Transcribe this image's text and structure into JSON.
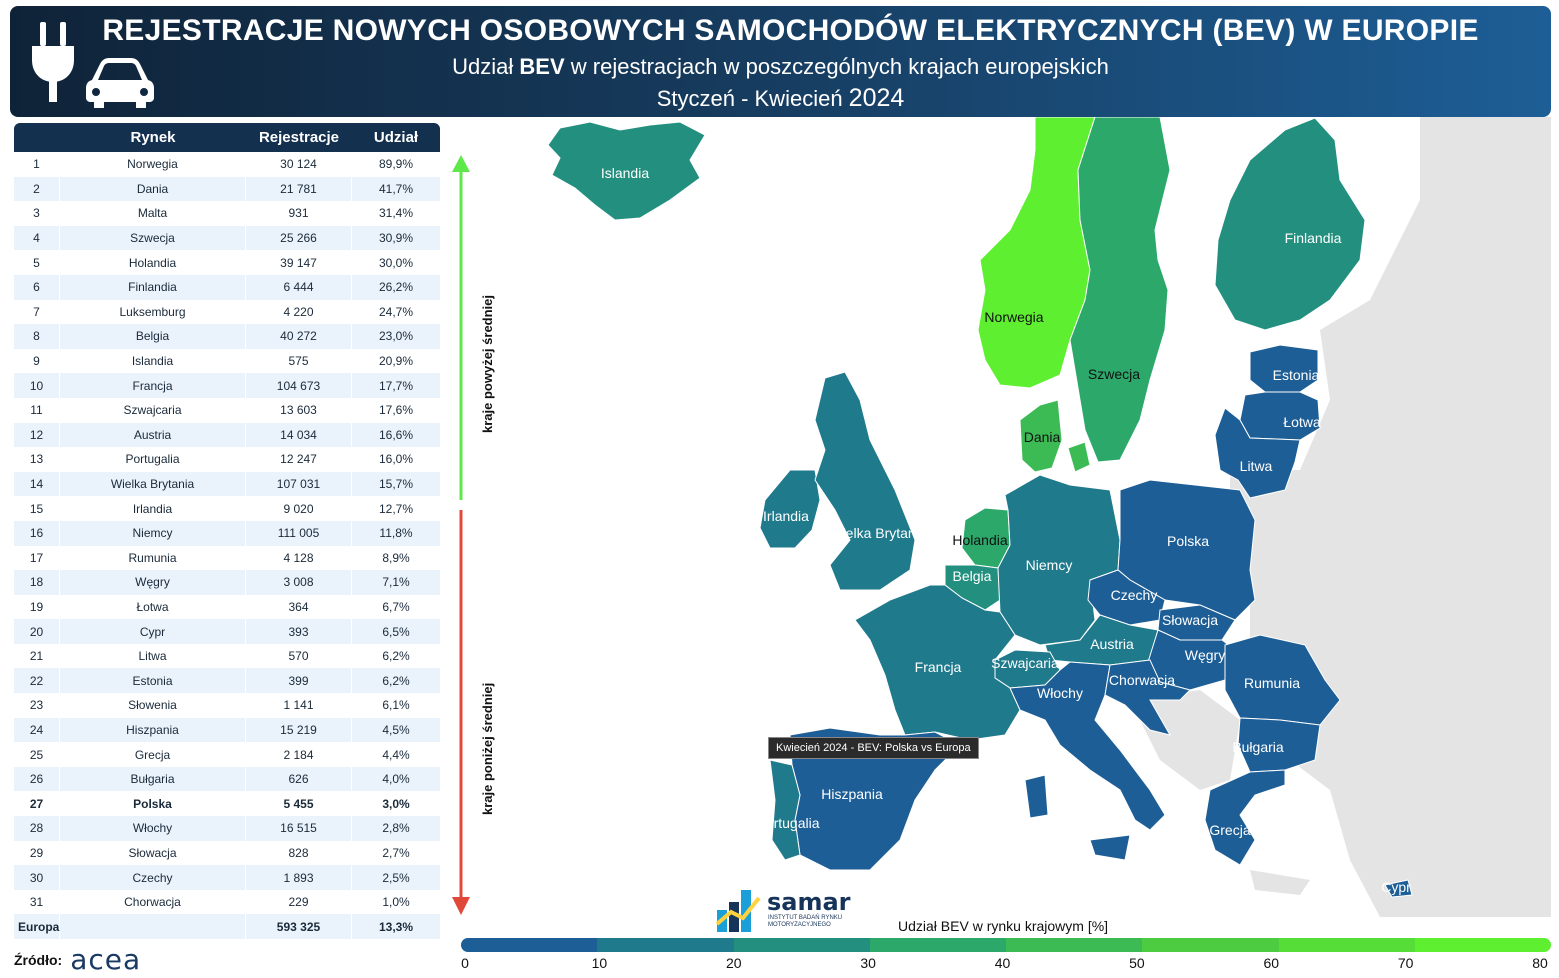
{
  "header": {
    "title": "REJESTRACJE NOWYCH OSOBOWYCH SAMOCHODÓW ELEKTRYCZNYCH (BEV) W EUROPIE",
    "subtitle_pre": "Udział ",
    "subtitle_bold": "BEV",
    "subtitle_post": " w rejestracjach w poszczególnych krajach europejskich",
    "period_text": "Styczeń - Kwiecień ",
    "period_year": "2024"
  },
  "table": {
    "headers": [
      "Rynek",
      "Rejestracje",
      "Udział"
    ],
    "rows": [
      [
        "1",
        "Norwegia",
        "30 124",
        "89,9%"
      ],
      [
        "2",
        "Dania",
        "21 781",
        "41,7%"
      ],
      [
        "3",
        "Malta",
        "931",
        "31,4%"
      ],
      [
        "4",
        "Szwecja",
        "25 266",
        "30,9%"
      ],
      [
        "5",
        "Holandia",
        "39 147",
        "30,0%"
      ],
      [
        "6",
        "Finlandia",
        "6 444",
        "26,2%"
      ],
      [
        "7",
        "Luksemburg",
        "4 220",
        "24,7%"
      ],
      [
        "8",
        "Belgia",
        "40 272",
        "23,0%"
      ],
      [
        "9",
        "Islandia",
        "575",
        "20,9%"
      ],
      [
        "10",
        "Francja",
        "104 673",
        "17,7%"
      ],
      [
        "11",
        "Szwajcaria",
        "13 603",
        "17,6%"
      ],
      [
        "12",
        "Austria",
        "14 034",
        "16,6%"
      ],
      [
        "13",
        "Portugalia",
        "12 247",
        "16,0%"
      ],
      [
        "14",
        "Wielka Brytania",
        "107 031",
        "15,7%"
      ],
      [
        "15",
        "Irlandia",
        "9 020",
        "12,7%"
      ],
      [
        "16",
        "Niemcy",
        "111 005",
        "11,8%"
      ],
      [
        "17",
        "Rumunia",
        "4 128",
        "8,9%"
      ],
      [
        "18",
        "Węgry",
        "3 008",
        "7,1%"
      ],
      [
        "19",
        "Łotwa",
        "364",
        "6,7%"
      ],
      [
        "20",
        "Cypr",
        "393",
        "6,5%"
      ],
      [
        "21",
        "Litwa",
        "570",
        "6,2%"
      ],
      [
        "22",
        "Estonia",
        "399",
        "6,2%"
      ],
      [
        "23",
        "Słowenia",
        "1 141",
        "6,1%"
      ],
      [
        "24",
        "Hiszpania",
        "15 219",
        "4,5%"
      ],
      [
        "25",
        "Grecja",
        "2 184",
        "4,4%"
      ],
      [
        "26",
        "Bułgaria",
        "626",
        "4,0%"
      ],
      [
        "27",
        "Polska",
        "5 455",
        "3,0%"
      ],
      [
        "28",
        "Włochy",
        "16 515",
        "2,8%"
      ],
      [
        "29",
        "Słowacja",
        "828",
        "2,7%"
      ],
      [
        "30",
        "Czechy",
        "1 893",
        "2,5%"
      ],
      [
        "31",
        "Chorwacja",
        "229",
        "1,0%"
      ]
    ],
    "total": [
      "Europa",
      "593 325",
      "13,3%"
    ],
    "highlight_rank": "27"
  },
  "axis_labels": {
    "above": "kraje powyżej średniej",
    "below": "kraje poniżej średniej"
  },
  "source": {
    "label": "Źródło:",
    "name": "acea"
  },
  "tooltip": "Kwiecień 2024 - BEV: Polska vs Europa",
  "logo": {
    "name": "samar",
    "tagline": "INSTYTUT BADAŃ RYNKU MOTORYZACYJNEGO"
  },
  "chart_data": {
    "type": "choropleth",
    "title": "Udział BEV w rynku krajowym [%]",
    "scale_ticks": [
      "0",
      "10",
      "20",
      "30",
      "40",
      "50",
      "60",
      "70",
      "80"
    ],
    "scale_colors": [
      "#1d5e96",
      "#1f7a8c",
      "#23907f",
      "#2ba86a",
      "#3cbb55",
      "#4dcc42",
      "#56dd38",
      "#5ef030"
    ],
    "regions": [
      {
        "name": "Islandia",
        "value": 20.9,
        "color": "#23907f"
      },
      {
        "name": "Norwegia",
        "value": 89.9,
        "color": "#5ef030"
      },
      {
        "name": "Szwecja",
        "value": 30.9,
        "color": "#2ba86a"
      },
      {
        "name": "Finlandia",
        "value": 26.2,
        "color": "#23907f"
      },
      {
        "name": "Estonia",
        "value": 6.2,
        "color": "#1d5e96"
      },
      {
        "name": "Łotwa",
        "value": 6.7,
        "color": "#1d5e96"
      },
      {
        "name": "Litwa",
        "value": 6.2,
        "color": "#1d5e96"
      },
      {
        "name": "Dania",
        "value": 41.7,
        "color": "#3cbb55"
      },
      {
        "name": "Irlandia",
        "value": 12.7,
        "color": "#1f7a8c"
      },
      {
        "name": "Wielka Brytania",
        "value": 15.7,
        "color": "#1f7a8c"
      },
      {
        "name": "Holandia",
        "value": 30.0,
        "color": "#2ba86a"
      },
      {
        "name": "Belgia",
        "value": 23.0,
        "color": "#23907f"
      },
      {
        "name": "Niemcy",
        "value": 11.8,
        "color": "#1f7a8c"
      },
      {
        "name": "Polska",
        "value": 3.0,
        "color": "#1d5e96"
      },
      {
        "name": "Czechy",
        "value": 2.5,
        "color": "#1d5e96"
      },
      {
        "name": "Słowacja",
        "value": 2.7,
        "color": "#1d5e96"
      },
      {
        "name": "Austria",
        "value": 16.6,
        "color": "#1f7a8c"
      },
      {
        "name": "Węgry",
        "value": 7.1,
        "color": "#1d5e96"
      },
      {
        "name": "Rumunia",
        "value": 8.9,
        "color": "#1d5e96"
      },
      {
        "name": "Szwajcaria",
        "value": 17.6,
        "color": "#1f7a8c"
      },
      {
        "name": "Francja",
        "value": 17.7,
        "color": "#1f7a8c"
      },
      {
        "name": "Włochy",
        "value": 2.8,
        "color": "#1d5e96"
      },
      {
        "name": "Chorwacja",
        "value": 1.0,
        "color": "#1d5e96"
      },
      {
        "name": "Bułgaria",
        "value": 4.0,
        "color": "#1d5e96"
      },
      {
        "name": "Grecja",
        "value": 4.4,
        "color": "#1d5e96"
      },
      {
        "name": "Hiszpania",
        "value": 4.5,
        "color": "#1d5e96"
      },
      {
        "name": "Portugalia",
        "value": 16.0,
        "color": "#1f7a8c"
      },
      {
        "name": "Cypr",
        "value": 6.5,
        "color": "#1d5e96"
      }
    ]
  }
}
